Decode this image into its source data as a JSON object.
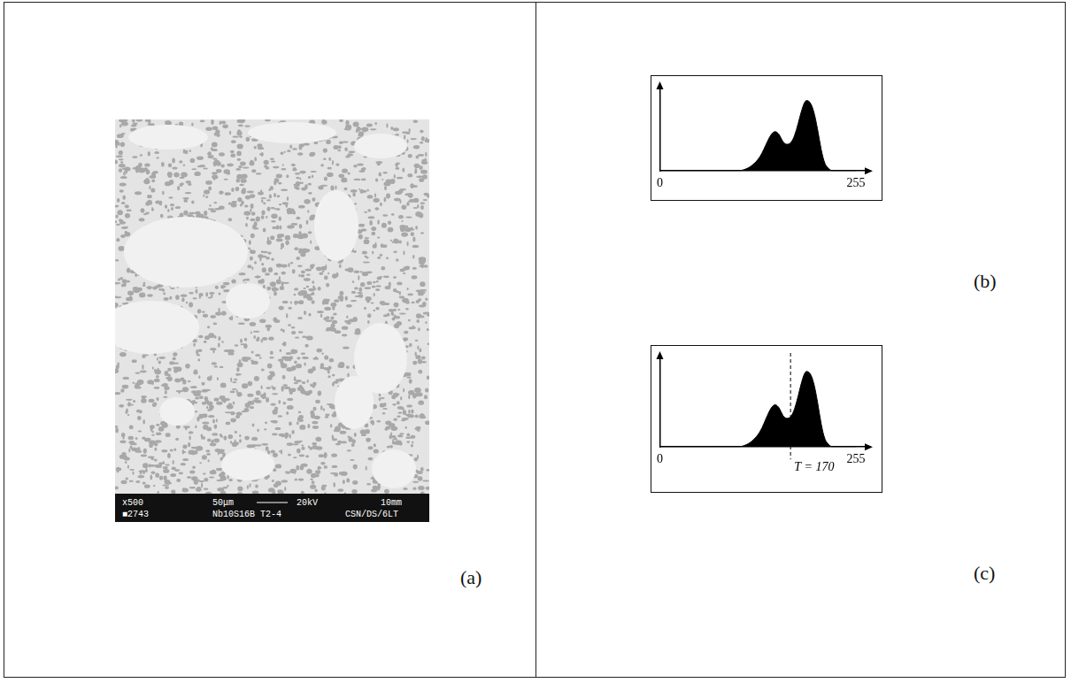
{
  "micrograph": {
    "label": "(a)",
    "scale_bar": [
      "x500",
      "50μm",
      "20kV",
      "10mm"
    ],
    "specimen": [
      "■2743",
      "Nb10S16B T2-4",
      "CSN/DS/6LT"
    ]
  },
  "chart_data": [
    {
      "type": "area",
      "label": "(b)",
      "x": [
        0,
        100,
        110,
        120,
        130,
        140,
        145,
        150,
        155,
        160,
        165,
        170,
        175,
        180,
        185,
        190,
        195,
        200,
        205,
        210,
        215,
        220,
        225,
        255
      ],
      "values": [
        0,
        0,
        0.02,
        0.08,
        0.2,
        0.42,
        0.52,
        0.56,
        0.52,
        0.42,
        0.38,
        0.4,
        0.5,
        0.68,
        0.88,
        1.0,
        0.98,
        0.85,
        0.6,
        0.3,
        0.1,
        0.03,
        0,
        0
      ],
      "color": "#000000",
      "xlim": [
        0,
        270
      ],
      "xticks": [
        0,
        255
      ],
      "ylim": [
        0,
        1.2
      ],
      "tick_labels": "x",
      "grid": false
    },
    {
      "type": "area",
      "label": "(c)",
      "x": [
        0,
        100,
        110,
        120,
        130,
        140,
        145,
        150,
        155,
        160,
        165,
        170,
        175,
        180,
        185,
        190,
        195,
        200,
        205,
        210,
        215,
        220,
        225,
        255
      ],
      "values": [
        0,
        0,
        0.02,
        0.08,
        0.2,
        0.42,
        0.52,
        0.56,
        0.52,
        0.42,
        0.38,
        0.4,
        0.5,
        0.68,
        0.88,
        1.0,
        0.98,
        0.85,
        0.6,
        0.3,
        0.1,
        0.03,
        0,
        0
      ],
      "color": "#000000",
      "xlim": [
        0,
        270
      ],
      "xticks": [
        0,
        255
      ],
      "ylim": [
        0,
        1.2
      ],
      "tick_labels": "x",
      "grid": false,
      "threshold": {
        "value": 170,
        "label": "T = 170",
        "line_style": "dashed"
      }
    }
  ]
}
